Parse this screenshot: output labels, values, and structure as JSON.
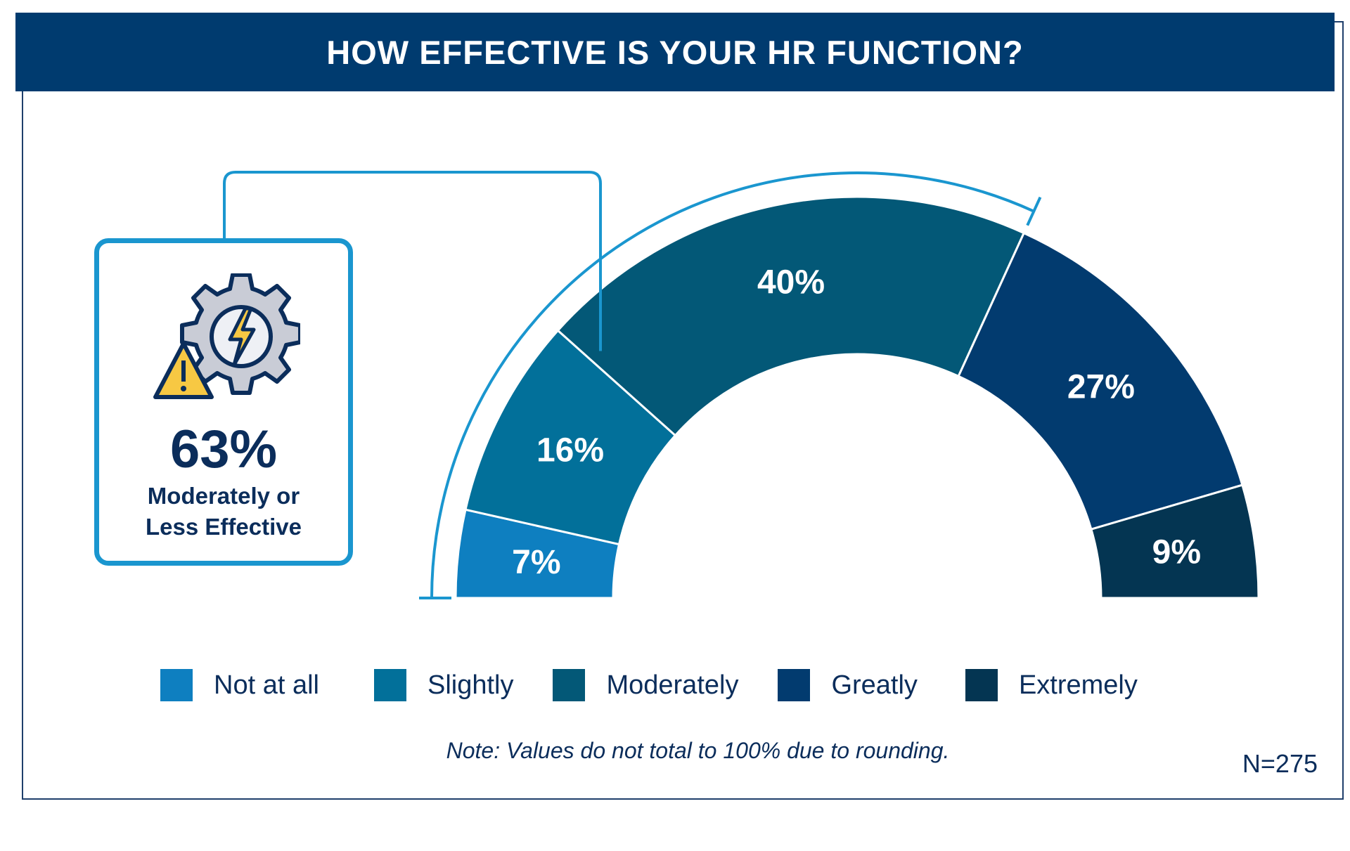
{
  "chart_data": {
    "type": "pie",
    "title": "HOW EFFECTIVE IS YOUR HR FUNCTION?",
    "categories": [
      "Not at all",
      "Slightly",
      "Moderately",
      "Greatly",
      "Extremely"
    ],
    "values": [
      7,
      16,
      40,
      27,
      9
    ],
    "data_labels": [
      "7%",
      "16%",
      "40%",
      "27%",
      "9%"
    ],
    "colors": [
      "#0e7fc0",
      "#02709a",
      "#035877",
      "#023b6f",
      "#043552"
    ],
    "legend_position": "bottom",
    "annotation": {
      "value": "63%",
      "text_line1": "Moderately or",
      "text_line2": "Less Effective",
      "bracket_color": "#1a96cf"
    },
    "note": "Note: Values do not total to 100% due to rounding.",
    "sample_size": "N=275"
  },
  "icons": [
    "gear-icon",
    "lightning-icon",
    "warning-icon"
  ]
}
